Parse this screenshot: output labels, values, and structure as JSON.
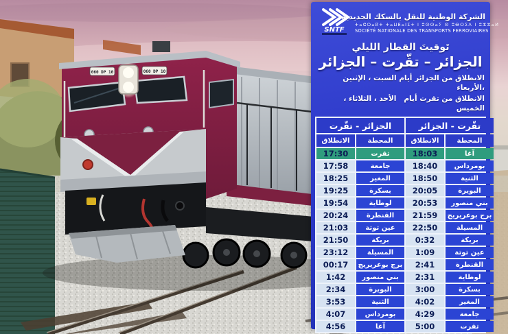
{
  "brand": {
    "logo_text": "SNTF",
    "name_ar": "الشركة الوطنية للنقل بالسكك الحديدية",
    "name_tifinagh": "ⵜⴰⵛⵔⴰⴽⵜ ⵜⴰⵡⵟⴰⵏⵉⵜ ⵏ ⵓⵙⵙⴰⵢ ⵙ ⵓⴱⵔⵉⴷ ⵏ ⵓⵣⵣⴰⵍ",
    "name_fr": "SOCIÉTÉ NATIONALE DES TRANSPORTS FERROVIAIRES"
  },
  "poster": {
    "title": "تَوقيتَ القطار الليلي",
    "route": "الجزائر – تقّرت – الجزائر",
    "days_line1": "الانطلاق من الجزائر أيام السبت ، الإثنين ،الأربعاء",
    "days_line2": "الانطلاق من تقرت أيام   الأحد ، الثلاثاء ، الخميس"
  },
  "timetable": {
    "left": {
      "header": "تقّرت ‎-‎ الجزائر",
      "col_time": "الانطلاق",
      "col_station": "المحطة"
    },
    "right": {
      "header": "الجزائر ‎-‎ تقّرت",
      "col_time": "الانطلاق",
      "col_station": "المحطة"
    },
    "rows": [
      {
        "l_time": "17:30",
        "l_station": "تقرت",
        "r_time": "18:03",
        "r_station": "آغا",
        "highlight": true
      },
      {
        "l_time": "17:58",
        "l_station": "جامعة",
        "r_time": "18:40",
        "r_station": "بومرداس"
      },
      {
        "l_time": "18:25",
        "l_station": "المغير",
        "r_time": "18:50",
        "r_station": "الثنية"
      },
      {
        "l_time": "19:25",
        "l_station": "بسكرة",
        "r_time": "20:05",
        "r_station": "البويرة"
      },
      {
        "l_time": "19:54",
        "l_station": "لوطاية",
        "r_time": "20:53",
        "r_station": "بني منصور"
      },
      {
        "l_time": "20:24",
        "l_station": "القنطرة",
        "r_time": "21:59",
        "r_station": "برج بوعريريج"
      },
      {
        "l_time": "21:03",
        "l_station": "عين توتة",
        "r_time": "22:50",
        "r_station": "المسيلة"
      },
      {
        "l_time": "21:50",
        "l_station": "بريكة",
        "r_time": "0:32",
        "r_station": "بريكة"
      },
      {
        "l_time": "23:12",
        "l_station": "المسيلة",
        "r_time": "1:09",
        "r_station": "عين توتة"
      },
      {
        "l_time": "00:17",
        "l_station": "برج بوعريريج",
        "r_time": "2:41",
        "r_station": "القنطرة"
      },
      {
        "l_time": "1:42",
        "l_station": "بني منصور",
        "r_time": "2:31",
        "r_station": "لوطاية"
      },
      {
        "l_time": "2:34",
        "l_station": "البويرة",
        "r_time": "3:00",
        "r_station": "بسكرة"
      },
      {
        "l_time": "3:53",
        "l_station": "الثنية",
        "r_time": "4:02",
        "r_station": "المغير"
      },
      {
        "l_time": "4:07",
        "l_station": "بومرداس",
        "r_time": "4:29",
        "r_station": "جامعة"
      },
      {
        "l_time": "4:56",
        "l_station": "آغا",
        "r_time": "5:00",
        "r_station": "تقرت"
      }
    ]
  },
  "photo": {
    "loco_plate": "060 DP 10"
  },
  "colors": {
    "panel_blue": "#2d3aca",
    "table_header_blue": "#2c3bc8",
    "station_cell_blue": "#2b44d4",
    "time_cell_bg": "#d7e3f2",
    "time_text": "#0c1d55",
    "highlight_green": "#2f9c7e",
    "loco_maroon": "#7c2040"
  }
}
